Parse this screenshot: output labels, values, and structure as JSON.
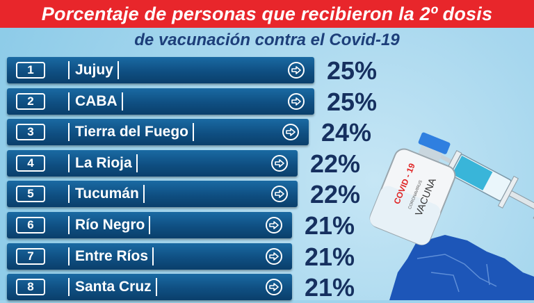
{
  "title": "Porcentaje de personas que recibieron la 2º dosis",
  "subtitle": "de vacunación contra el Covid-19",
  "vial_label_top": "COVID - 19",
  "vial_label_mid": "CORONAVIRUS",
  "vial_label_bottom": "VACUNA",
  "colors": {
    "title_bar": "#e8262b",
    "row_fill": "#0f4f82",
    "percent_text": "#16305f",
    "background": "#9fd3ec",
    "map": "#1d56b8"
  },
  "icons": [
    "arrow-right-circle-icon",
    "syringe-icon",
    "vaccine-vial-icon",
    "argentina-map-icon"
  ],
  "chart_data": {
    "type": "bar",
    "title": "Porcentaje de personas que recibieron la 2º dosis",
    "subtitle": "de vacunación contra el Covid-19",
    "ranks": [
      "1",
      "2",
      "3",
      "4",
      "5",
      "6",
      "7",
      "8"
    ],
    "categories": [
      "Jujuy",
      "CABA",
      "Tierra del Fuego",
      "La Rioja",
      "Tucumán",
      "Río Negro",
      "Entre Ríos",
      "Santa Cruz"
    ],
    "values": [
      25,
      25,
      24,
      22,
      22,
      21,
      21,
      21
    ],
    "value_labels": [
      "25%",
      "25%",
      "24%",
      "22%",
      "22%",
      "21%",
      "21%",
      "21%"
    ],
    "unit": "%"
  }
}
